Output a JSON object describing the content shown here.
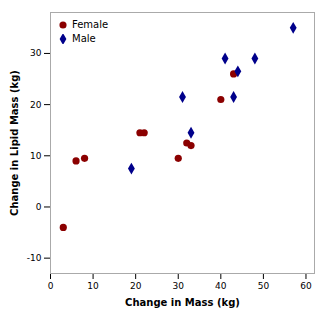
{
  "chart_data": {
    "type": "scatter",
    "xlabel": "Change in Mass (kg)",
    "ylabel": "Change in Lipid Mass (kg)",
    "xlim": [
      0,
      62
    ],
    "ylim": [
      -13,
      38
    ],
    "xticks": [
      0,
      10,
      20,
      30,
      40,
      50,
      60
    ],
    "yticks": [
      -10,
      0,
      10,
      20,
      30
    ],
    "grid": false,
    "legend": "upper left",
    "series": [
      {
        "name": "Female",
        "color": "#8b0000",
        "marker": "circle",
        "x": [
          3,
          6,
          8,
          21,
          22,
          30,
          32,
          33,
          40,
          43
        ],
        "values": [
          -4,
          9,
          9.5,
          14.5,
          14.5,
          9.5,
          12.5,
          12,
          21,
          26
        ]
      },
      {
        "name": "Male",
        "color": "#00008b",
        "marker": "diamond",
        "x": [
          19,
          31,
          33,
          41,
          43,
          44,
          48,
          57
        ],
        "values": [
          7.5,
          21.5,
          14.5,
          29,
          21.5,
          26.5,
          29,
          35
        ]
      }
    ]
  }
}
